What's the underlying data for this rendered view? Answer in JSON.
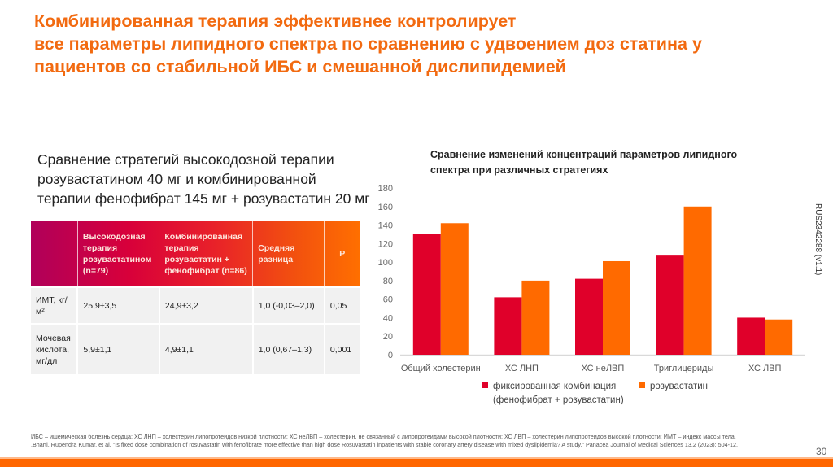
{
  "slide": {
    "title_lines": [
      "Комбинированная терапия эффективнее контролирует",
      "все параметры липидного спектра по сравнению с удвоением доз статина у",
      "пациентов со стабильной ИБС и смешанной дислипидемией"
    ],
    "subtitle_lines": [
      "Сравнение стратегий высокодозной терапии",
      "розувастатином 40 мг и комбинированной",
      "терапии фенофибрат 145 мг + розувастатин 20 мг"
    ],
    "side_code": "RUS2342288 (v1.1)",
    "page_number": "30",
    "footnote_lines": [
      "ИБС – ишемическая болезнь сердца; ХС ЛНП – холестерин липопротеидов низкой плотности; ХС неЛВП – холестерин, не связанный с липопротеидами высокой плотности; ХС ЛВП – холестерин липопротеидов высокой плотности; ИМТ – индекс массы тела.",
      ".Bharti, Rupendra Kumar, et al. \"Is fixed dose combination of rosuvastatin with fenofibrate more effective than high dose Rosuvastatin inpatients with stable coronary artery disease with mixed dyslipidemia? A study.\" Panacea Journal of Medical Sciences 13.2 (2023): 504-12."
    ],
    "colors": {
      "accent": "#f26a10",
      "series_combo": "#e0002a",
      "series_rosu": "#ff6a00",
      "bottom_bar": "#ff6600"
    }
  },
  "table": {
    "headers": [
      "",
      "Высокодозная терапия розувастатином (n=79)",
      "Комбинированная терапия розувастатин + фенофибрат (n=86)",
      "Средняя разница",
      "P"
    ],
    "rows": [
      [
        "ИМТ, кг/м²",
        "25,9±3,5",
        "24,9±3,2",
        "1,0 (-0,03–2,0)",
        "0,05"
      ],
      [
        "Мочевая кислота, мг/дл",
        "5,9±1,1",
        "4,9±1,1",
        "1,0 (0,67–1,3)",
        "0,001"
      ]
    ]
  },
  "chart_data": {
    "type": "bar",
    "title": "Сравнение изменений концентраций параметров липидного спектра при различных стратегиях",
    "categories": [
      "Общий холестерин",
      "ХС ЛНП",
      "ХС неЛВП",
      "Триглицериды",
      "ХС ЛВП"
    ],
    "series": [
      {
        "name": "фиксированная комбинация (фенофибрат + розувастатин)",
        "color": "#e0002a",
        "values": [
          130,
          62,
          82,
          107,
          40
        ]
      },
      {
        "name": "розувастатин",
        "color": "#ff6a00",
        "values": [
          142,
          80,
          101,
          160,
          38
        ]
      }
    ],
    "legend_lines": [
      [
        "фиксированная комбинация",
        "(фенофибрат + розувастатин)"
      ],
      [
        "розувастатин"
      ]
    ],
    "xlabel": "",
    "ylabel": "",
    "ylim": [
      0,
      180
    ],
    "yticks": [
      0,
      20,
      40,
      60,
      80,
      100,
      120,
      140,
      160,
      180
    ],
    "grid": false,
    "legend_position": "bottom"
  }
}
